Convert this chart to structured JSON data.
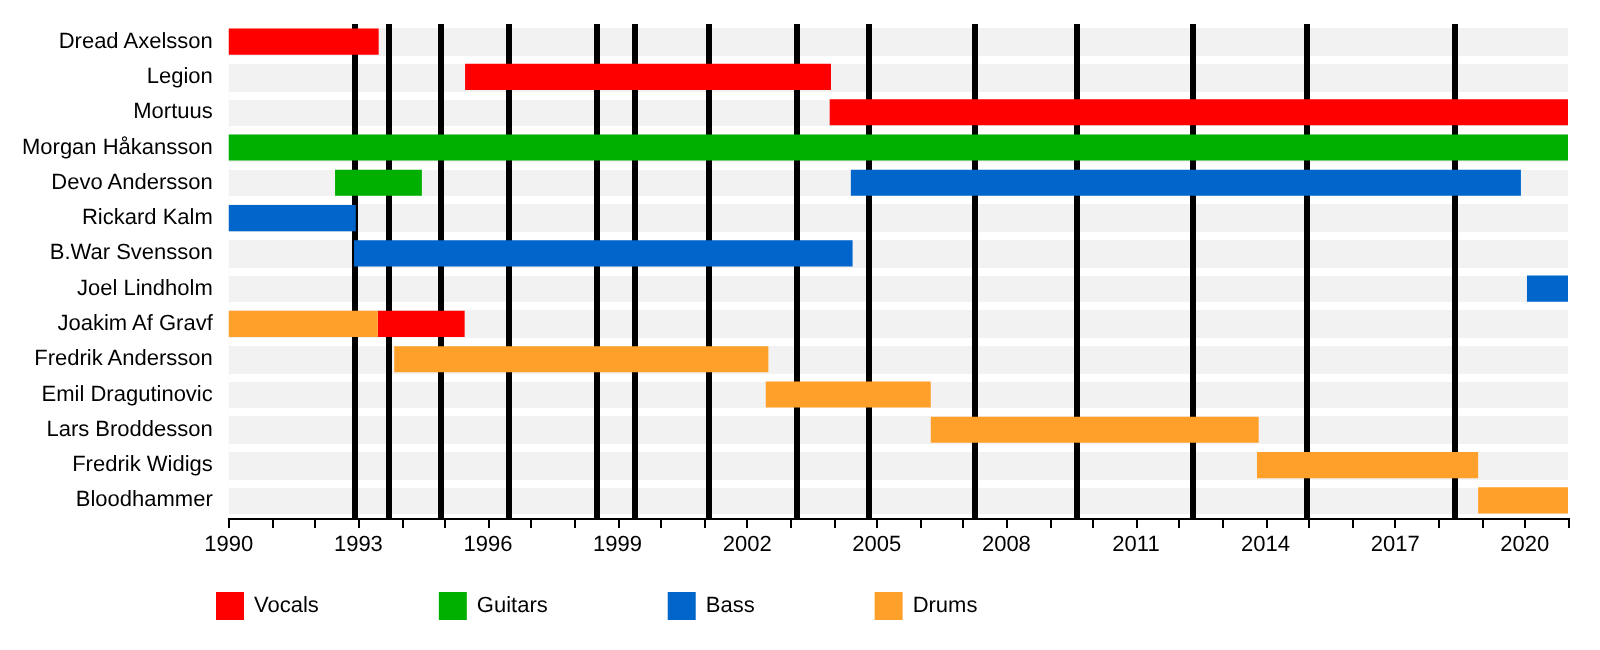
{
  "chart_data": {
    "type": "bar",
    "orientation": "horizontal",
    "categories": [
      "Dread Axelsson",
      "Legion",
      "Mortuus",
      "Morgan Håkansson",
      "Devo Andersson",
      "Rickard Kalm",
      "B.War Svensson",
      "Joel Lindholm",
      "Joakim Af Gravf",
      "Fredrik Andersson",
      "Emil Dragutinovic",
      "Lars Broddesson",
      "Fredrik Widigs",
      "Bloodhammer"
    ],
    "series": [
      {
        "name": "Vocals",
        "color": "#ff0000",
        "base": [
          1990,
          1995.47,
          2003.91,
          null,
          null,
          null,
          null,
          null,
          1993.45,
          null,
          null,
          null,
          null,
          null
        ],
        "values": [
          3.47,
          8.47,
          17.09,
          null,
          null,
          null,
          null,
          null,
          2.01,
          null,
          null,
          null,
          null,
          null
        ]
      },
      {
        "name": "Guitars",
        "color": "#00b000",
        "base": [
          null,
          null,
          null,
          1990,
          1992.46,
          null,
          null,
          null,
          null,
          null,
          null,
          null,
          null,
          null
        ],
        "values": [
          null,
          null,
          null,
          31,
          2.01,
          null,
          null,
          null,
          null,
          null,
          null,
          null,
          null,
          null
        ]
      },
      {
        "name": "Bass",
        "color": "#0066cc",
        "base": [
          null,
          null,
          null,
          null,
          2004.4,
          1990,
          1992.9,
          2020.05,
          null,
          null,
          null,
          null,
          null,
          null
        ],
        "values": [
          null,
          null,
          null,
          null,
          15.51,
          2.94,
          11.54,
          0.95,
          null,
          null,
          null,
          null,
          null,
          null
        ]
      },
      {
        "name": "Drums",
        "color": "#ffa02a",
        "base": [
          null,
          null,
          null,
          null,
          null,
          null,
          null,
          null,
          1990,
          1993.83,
          2002.43,
          2006.25,
          2013.8,
          2018.92
        ],
        "values": [
          null,
          null,
          null,
          null,
          null,
          null,
          null,
          null,
          3.45,
          8.66,
          3.82,
          7.59,
          5.12,
          2.08
        ]
      }
    ],
    "xlim": [
      1990,
      2021
    ],
    "xticks": [
      1990,
      {
        "value": 1991,
        "label": null
      },
      {
        "value": 1992,
        "label": null
      },
      1993,
      {
        "value": 1994,
        "label": null
      },
      {
        "value": 1995,
        "label": null
      },
      1996,
      {
        "value": 1997,
        "label": null
      },
      {
        "value": 1998,
        "label": null
      },
      1999,
      {
        "value": 2000,
        "label": null
      },
      {
        "value": 2001,
        "label": null
      },
      2002,
      {
        "value": 2003,
        "label": null
      },
      {
        "value": 2004,
        "label": null
      },
      2005,
      {
        "value": 2006,
        "label": null
      },
      {
        "value": 2007,
        "label": null
      },
      2008,
      {
        "value": 2009,
        "label": null
      },
      {
        "value": 2010,
        "label": null
      },
      2011,
      {
        "value": 2012,
        "label": null
      },
      {
        "value": 2013,
        "label": null
      },
      2014,
      {
        "value": 2015,
        "label": null
      },
      {
        "value": 2016,
        "label": null
      },
      2017,
      {
        "value": 2018,
        "label": null
      },
      {
        "value": 2019,
        "label": null
      },
      2020,
      {
        "value": 2021,
        "label": null
      }
    ],
    "ref_lines": [
      {
        "axis": "x",
        "value": 1992.93,
        "color": "#000000"
      },
      {
        "axis": "x",
        "value": 1993.72,
        "color": "#000000"
      },
      {
        "axis": "x",
        "value": 1994.89,
        "color": "#000000"
      },
      {
        "axis": "x",
        "value": 1996.46,
        "color": "#000000"
      },
      {
        "axis": "x",
        "value": 1998.52,
        "color": "#000000"
      },
      {
        "axis": "x",
        "value": 1999.38,
        "color": "#000000"
      },
      {
        "axis": "x",
        "value": 2001.11,
        "color": "#000000"
      },
      {
        "axis": "x",
        "value": 2003.16,
        "color": "#000000"
      },
      {
        "axis": "x",
        "value": 2004.81,
        "color": "#000000"
      },
      {
        "axis": "x",
        "value": 2007.25,
        "color": "#000000"
      },
      {
        "axis": "x",
        "value": 2009.62,
        "color": "#000000"
      },
      {
        "axis": "x",
        "value": 2012.33,
        "color": "#000000"
      },
      {
        "axis": "x",
        "value": 2014.93,
        "color": "#000000"
      },
      {
        "axis": "x",
        "value": 2018.35,
        "color": "#000000"
      }
    ],
    "legend": "bottom left",
    "grid": false
  }
}
